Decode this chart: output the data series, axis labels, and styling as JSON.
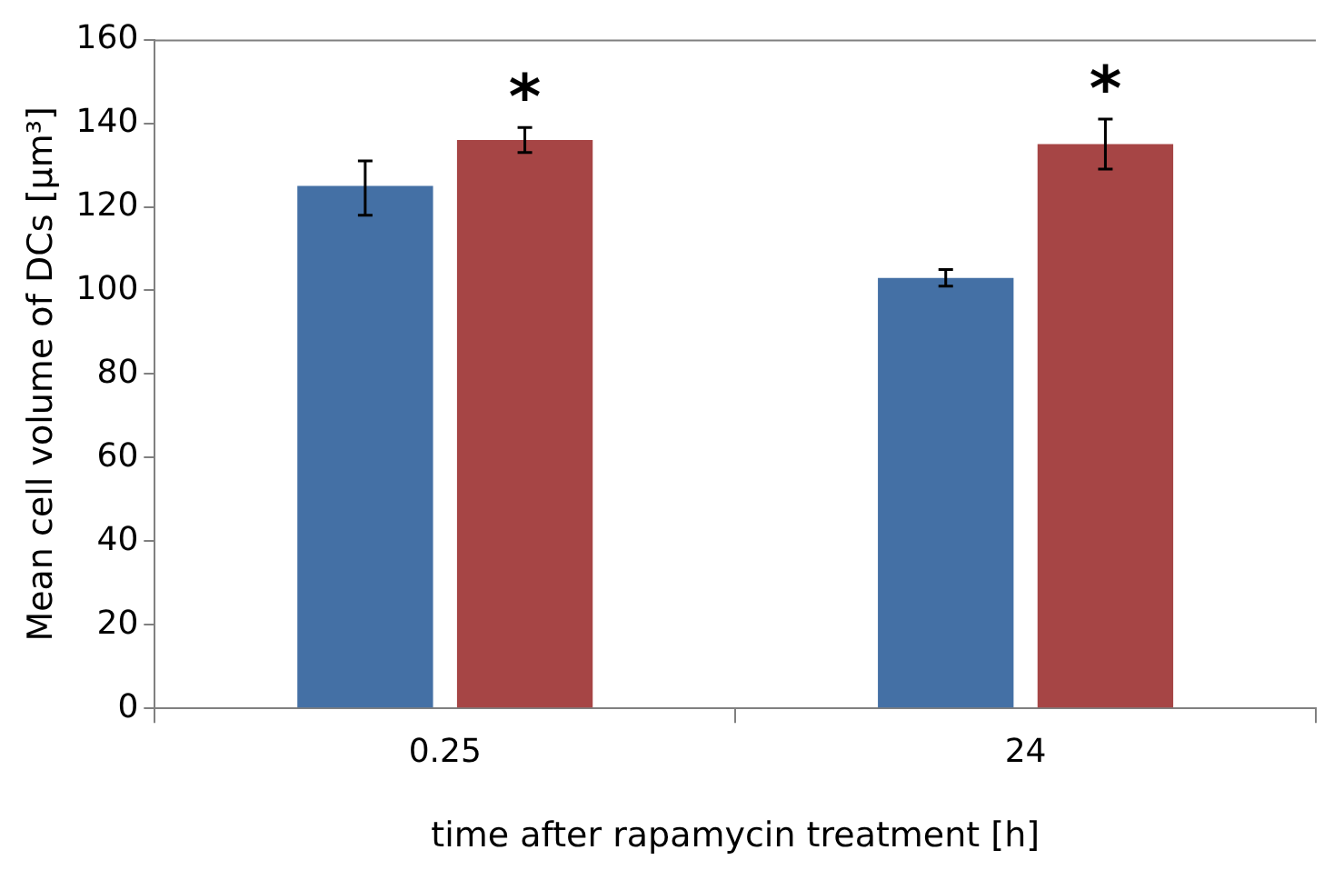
{
  "chart_data": {
    "type": "bar",
    "xlabel": "time after rapamycin treatment [h]",
    "ylabel": "Mean cell volume of DCs [µm³]",
    "categories": [
      "0.25",
      "24"
    ],
    "series": [
      {
        "color": "#4470a5",
        "values": [
          125,
          103
        ],
        "errors": [
          [
            118,
            131
          ],
          [
            101,
            105
          ]
        ]
      },
      {
        "color": "#a64545",
        "values": [
          136,
          135
        ],
        "errors": [
          [
            133,
            139
          ],
          [
            129,
            141
          ]
        ]
      }
    ],
    "ylim": [
      0,
      160
    ],
    "yticks": [
      0,
      20,
      40,
      60,
      80,
      100,
      120,
      140,
      160
    ],
    "grid": false,
    "legend": false,
    "annotations": [
      "*",
      "*"
    ]
  }
}
